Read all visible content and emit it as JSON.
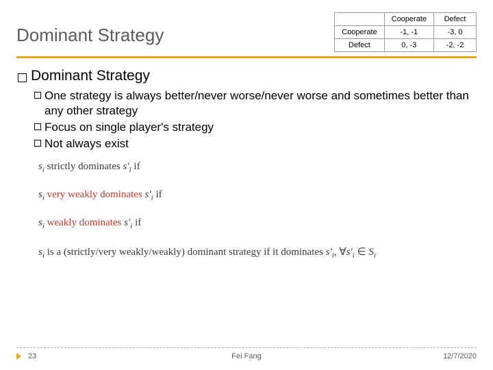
{
  "title": "Dominant Strategy",
  "table": {
    "col_headers": [
      "Cooperate",
      "Defect"
    ],
    "row_headers": [
      "Cooperate",
      "Defect"
    ],
    "cells": [
      [
        "-1, -1",
        "-3, 0"
      ],
      [
        "0, -3",
        "-2, -2"
      ]
    ],
    "border_color": "#999999",
    "font_size": 11
  },
  "accent_color": "#e6a817",
  "heading1": "Dominant Strategy",
  "bullets": [
    "One strategy is always better/never worse/never worse and sometimes better than any other strategy",
    "Focus on single player's strategy",
    "Not always exist"
  ],
  "math": {
    "line1_pre": "s",
    "line1_sub": "i",
    "line1_mid": " strictly dominates ",
    "line1_post": "s′",
    "line1_end": " if",
    "line2_pre": "s",
    "line2_mid_red": " very weakly dominates ",
    "line2_end": " if",
    "line3_pre": "s",
    "line3_mid_red": " weakly dominates ",
    "line3_end": " if",
    "line4_pre": "s",
    "line4_text": " is a (strictly/very weakly/weakly) dominant strategy if it dominates s′",
    "line4_tail": ", ∀s′",
    "line4_set": " ∈ S"
  },
  "footer": {
    "page": "23",
    "center": "Fei Fang",
    "date": "12/7/2020"
  }
}
